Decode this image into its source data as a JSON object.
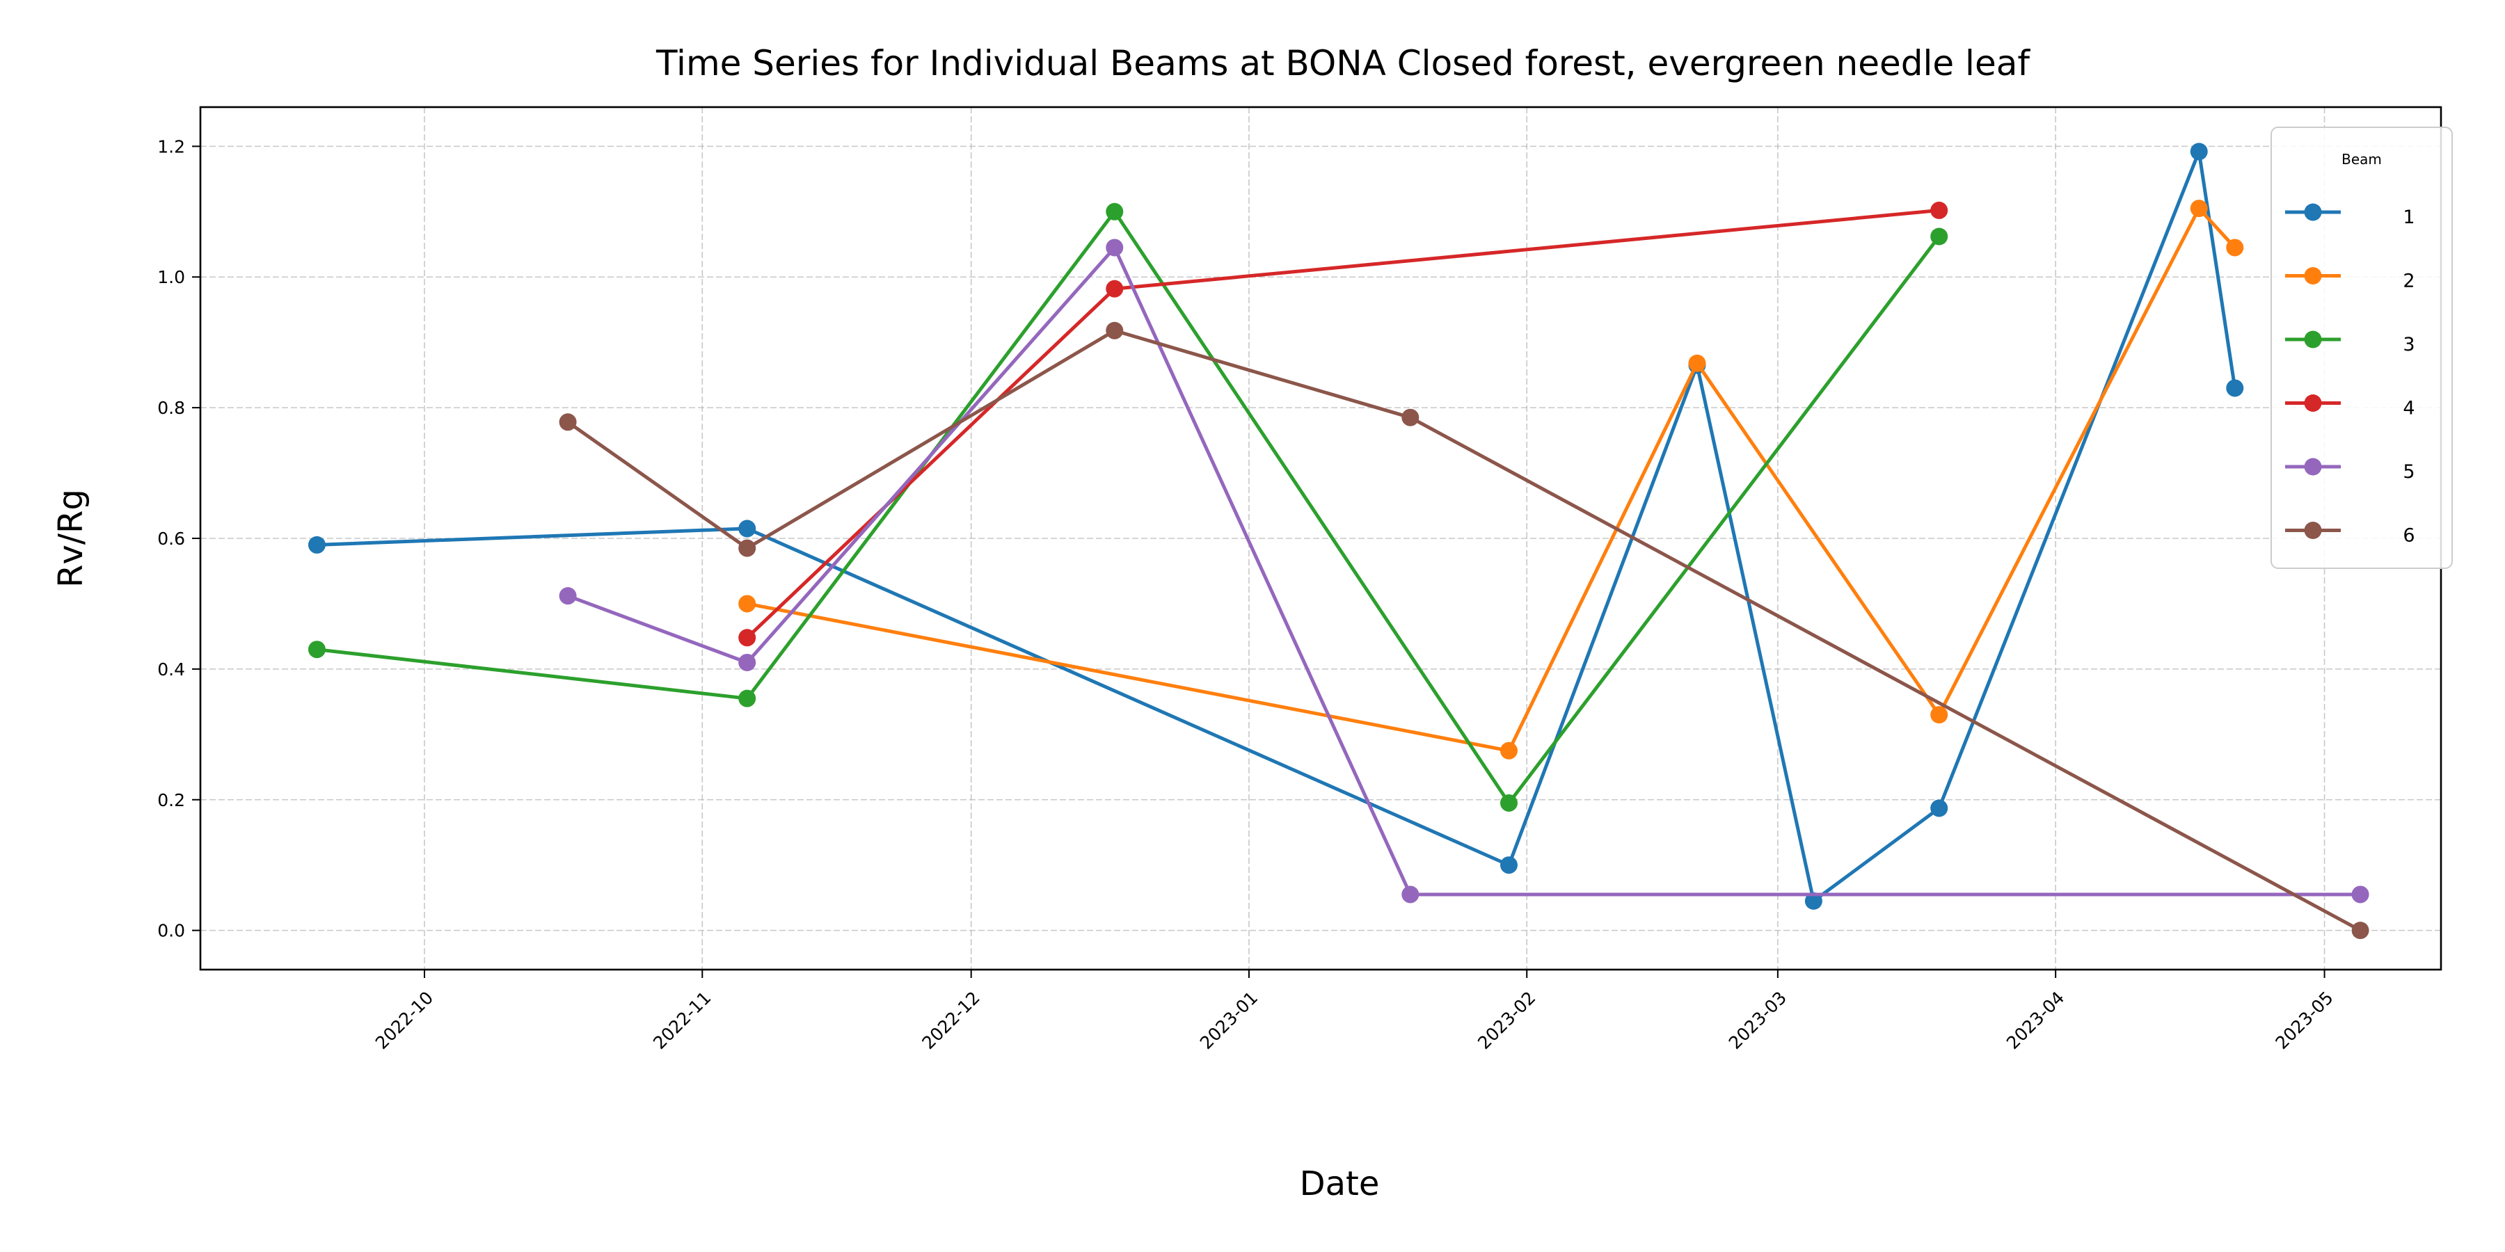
{
  "chart_data": {
    "type": "line",
    "title": "Time Series for Individual Beams at BONA Closed forest, evergreen needle leaf",
    "xlabel": "Date",
    "ylabel": "Rv/Rg",
    "xlim": [
      "2022-09-06",
      "2023-05-14"
    ],
    "ylim": [
      -0.06,
      1.26
    ],
    "x_ticks": [
      "2022-10",
      "2022-11",
      "2022-12",
      "2023-01",
      "2023-02",
      "2023-03",
      "2023-04",
      "2023-05"
    ],
    "y_ticks": [
      "0.0",
      "0.2",
      "0.4",
      "0.6",
      "0.8",
      "1.0",
      "1.2"
    ],
    "grid": true,
    "legend": {
      "title": "Beam",
      "position": "top-right"
    },
    "series": [
      {
        "name": "1",
        "color": "#1f77b4",
        "points": [
          {
            "x": "2022-09-19",
            "y": 0.59
          },
          {
            "x": "2022-11-06",
            "y": 0.615
          },
          {
            "x": "2023-01-30",
            "y": 0.1
          },
          {
            "x": "2023-02-20",
            "y": 0.865
          },
          {
            "x": "2023-03-05",
            "y": 0.045
          },
          {
            "x": "2023-03-19",
            "y": 0.187
          },
          {
            "x": "2023-04-17",
            "y": 1.192
          },
          {
            "x": "2023-04-21",
            "y": 0.83
          }
        ]
      },
      {
        "name": "2",
        "color": "#ff7f0e",
        "points": [
          {
            "x": "2022-11-06",
            "y": 0.5
          },
          {
            "x": "2023-01-30",
            "y": 0.275
          },
          {
            "x": "2023-02-20",
            "y": 0.868
          },
          {
            "x": "2023-03-19",
            "y": 0.33
          },
          {
            "x": "2023-04-17",
            "y": 1.105
          },
          {
            "x": "2023-04-21",
            "y": 1.045
          }
        ]
      },
      {
        "name": "3",
        "color": "#2ca02c",
        "points": [
          {
            "x": "2022-09-19",
            "y": 0.43
          },
          {
            "x": "2022-11-06",
            "y": 0.355
          },
          {
            "x": "2022-12-17",
            "y": 1.1
          },
          {
            "x": "2023-01-30",
            "y": 0.195
          },
          {
            "x": "2023-03-19",
            "y": 1.062
          }
        ]
      },
      {
        "name": "4",
        "color": "#d62728",
        "points": [
          {
            "x": "2022-11-06",
            "y": 0.448
          },
          {
            "x": "2022-12-17",
            "y": 0.982
          },
          {
            "x": "2023-03-19",
            "y": 1.102
          }
        ]
      },
      {
        "name": "5",
        "color": "#9467bd",
        "points": [
          {
            "x": "2022-10-17",
            "y": 0.512
          },
          {
            "x": "2022-11-06",
            "y": 0.41
          },
          {
            "x": "2022-12-17",
            "y": 1.045
          },
          {
            "x": "2023-01-19",
            "y": 0.055
          },
          {
            "x": "2023-05-05",
            "y": 0.055
          }
        ]
      },
      {
        "name": "6",
        "color": "#8c564b",
        "points": [
          {
            "x": "2022-10-17",
            "y": 0.778
          },
          {
            "x": "2022-11-06",
            "y": 0.585
          },
          {
            "x": "2022-12-17",
            "y": 0.918
          },
          {
            "x": "2023-01-19",
            "y": 0.785
          },
          {
            "x": "2023-05-05",
            "y": 0.0
          }
        ]
      }
    ]
  }
}
